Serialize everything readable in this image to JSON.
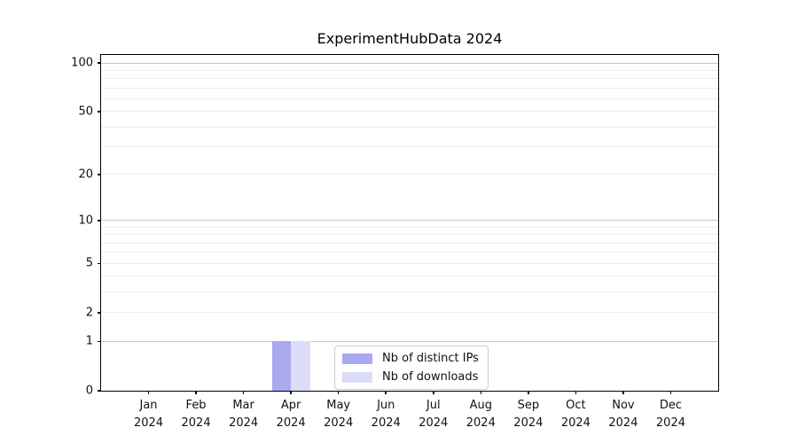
{
  "chart_data": {
    "type": "bar",
    "title": "ExperimentHubData 2024",
    "categories": [
      {
        "month": "Jan",
        "year": "2024"
      },
      {
        "month": "Feb",
        "year": "2024"
      },
      {
        "month": "Mar",
        "year": "2024"
      },
      {
        "month": "Apr",
        "year": "2024"
      },
      {
        "month": "May",
        "year": "2024"
      },
      {
        "month": "Jun",
        "year": "2024"
      },
      {
        "month": "Jul",
        "year": "2024"
      },
      {
        "month": "Aug",
        "year": "2024"
      },
      {
        "month": "Sep",
        "year": "2024"
      },
      {
        "month": "Oct",
        "year": "2024"
      },
      {
        "month": "Nov",
        "year": "2024"
      },
      {
        "month": "Dec",
        "year": "2024"
      }
    ],
    "series": [
      {
        "name": "Nb of distinct IPs",
        "color": "#a9a9f2",
        "values": [
          0,
          0,
          0,
          1,
          0,
          0,
          0,
          0,
          0,
          0,
          0,
          0
        ]
      },
      {
        "name": "Nb of downloads",
        "color": "#dcdcf8",
        "values": [
          0,
          0,
          0,
          1,
          0,
          0,
          0,
          0,
          0,
          0,
          0,
          0
        ]
      }
    ],
    "xlabel": "",
    "ylabel": "",
    "yscale": "log1p",
    "ylim": [
      0,
      112
    ],
    "x_range": [
      -1,
      12
    ],
    "bar_group_width": 0.8,
    "yticks_labeled": [
      0,
      1,
      2,
      5,
      10,
      20,
      50,
      100
    ],
    "gridlines_major": [
      1,
      10,
      100
    ],
    "gridlines_minor": [
      2,
      3,
      4,
      5,
      6,
      7,
      8,
      9,
      20,
      30,
      40,
      50,
      60,
      70,
      80,
      90
    ],
    "grid": "horizontal",
    "legend_position": "lower-center",
    "colors": {
      "spine": "#000000",
      "grid_major": "#c6c6c6",
      "grid_minor": "#ececec",
      "tick_text": "#111111",
      "background": "#ffffff"
    }
  }
}
